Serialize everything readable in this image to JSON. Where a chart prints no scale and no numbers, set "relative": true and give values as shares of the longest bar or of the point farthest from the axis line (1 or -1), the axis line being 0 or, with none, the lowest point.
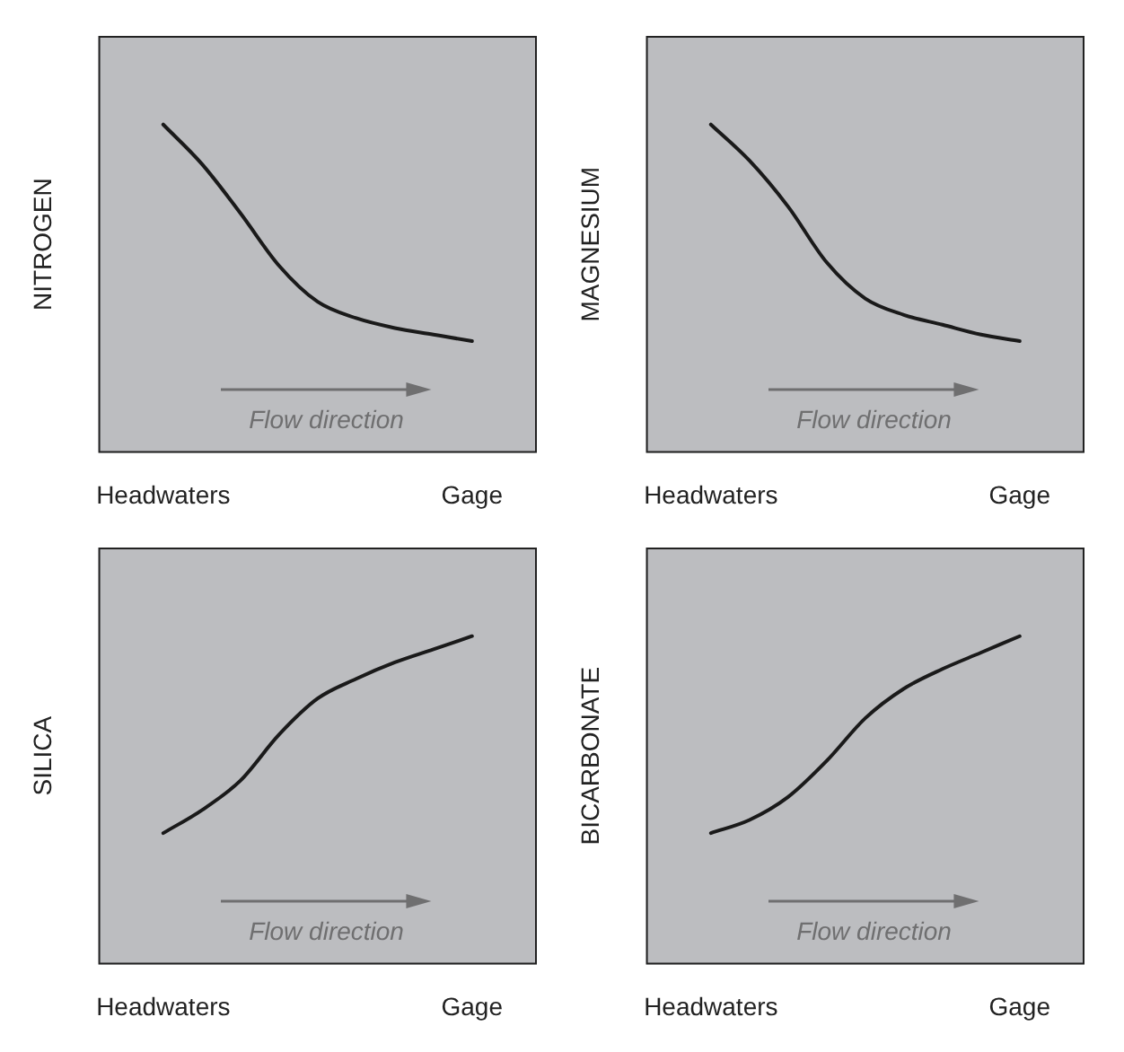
{
  "chart_data": [
    {
      "type": "line",
      "ylabel": "NITROGEN",
      "categories": [
        "Headwaters",
        null,
        null,
        null,
        null,
        null,
        null,
        null,
        "Gage"
      ],
      "relative": true,
      "annotations": [
        "Flow direction"
      ],
      "series": [
        {
          "color": "#1a1a1a",
          "values": [
            1,
            0.88,
            0.73,
            0.57,
            0.46,
            0.41,
            0.38,
            0.36,
            0.34
          ]
        }
      ]
    },
    {
      "type": "line",
      "ylabel": "MAGNESIUM",
      "categories": [
        "Headwaters",
        null,
        null,
        null,
        null,
        null,
        null,
        null,
        "Gage"
      ],
      "relative": true,
      "annotations": [
        "Flow direction"
      ],
      "series": [
        {
          "color": "#1a1a1a",
          "values": [
            1,
            0.89,
            0.75,
            0.58,
            0.47,
            0.42,
            0.39,
            0.36,
            0.34
          ]
        }
      ]
    },
    {
      "type": "line",
      "ylabel": "SILICA",
      "categories": [
        "Headwaters",
        null,
        null,
        null,
        null,
        null,
        null,
        null,
        "Gage"
      ],
      "relative": true,
      "annotations": [
        "Flow direction"
      ],
      "series": [
        {
          "color": "#1a1a1a",
          "values": [
            0.4,
            0.47,
            0.56,
            0.7,
            0.81,
            0.87,
            0.92,
            0.96,
            1
          ]
        }
      ]
    },
    {
      "type": "line",
      "ylabel": "BICARBONATE",
      "categories": [
        "Headwaters",
        null,
        null,
        null,
        null,
        null,
        null,
        null,
        "Gage"
      ],
      "relative": true,
      "annotations": [
        "Flow direction"
      ],
      "series": [
        {
          "color": "#1a1a1a",
          "values": [
            0.4,
            0.44,
            0.51,
            0.62,
            0.75,
            0.84,
            0.9,
            0.95,
            1
          ]
        }
      ]
    }
  ]
}
